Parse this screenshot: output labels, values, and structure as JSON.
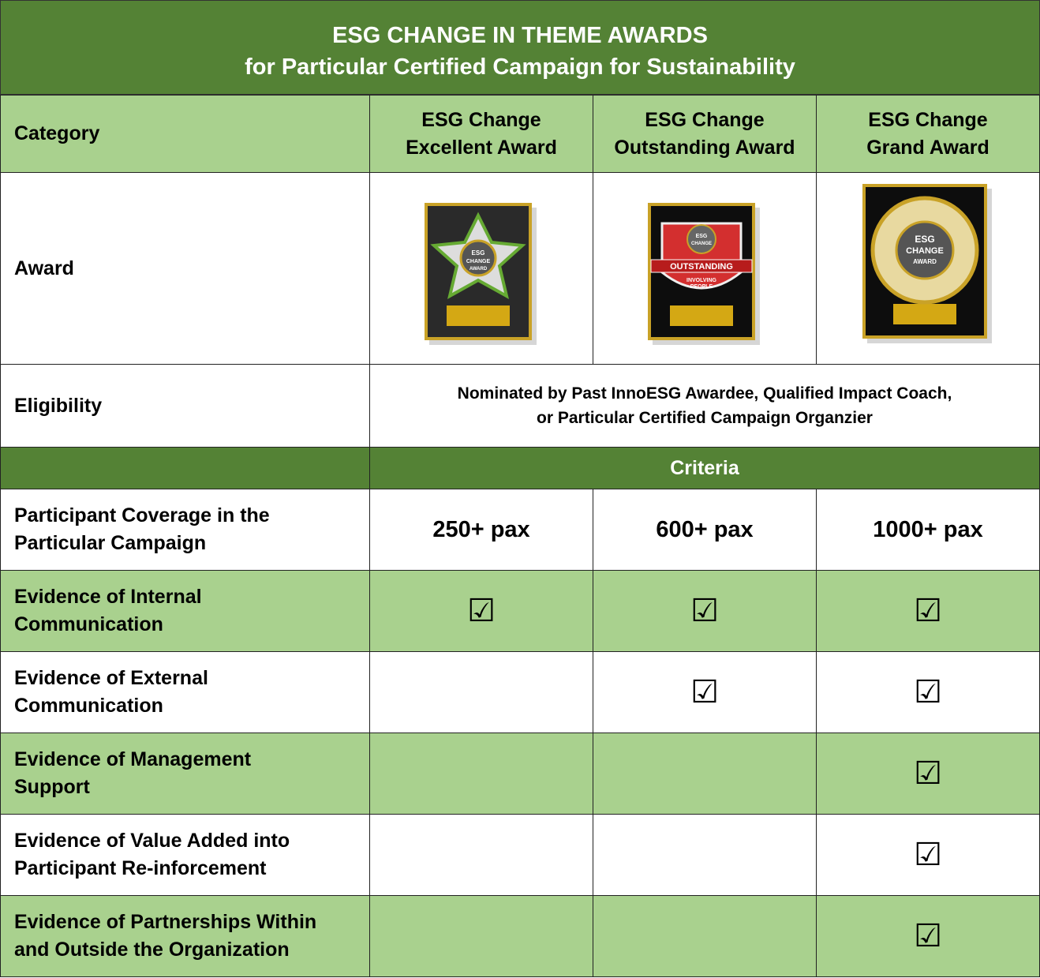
{
  "header": {
    "title": "ESG CHANGE IN THEME AWARDS",
    "subtitle": "for Particular Certified Campaign for Sustainability"
  },
  "table": {
    "columns": [
      [
        "Category"
      ],
      [
        "ESG Change",
        "Excellent Award"
      ],
      [
        "ESG Change",
        "Outstanding Award"
      ],
      [
        "ESG Change",
        "Grand Award"
      ]
    ],
    "award_label": "Award",
    "award_images": [
      {
        "texts": [
          "ESG",
          "CHANGE",
          "AWARD"
        ]
      },
      {
        "texts": [
          "ESG",
          "CHANGE",
          "OUTSTANDING",
          "INVOLVING",
          "PEOPLE"
        ]
      },
      {
        "texts": [
          "ESG",
          "CHANGE",
          "AWARD"
        ]
      }
    ],
    "eligibility_label": "Eligibility",
    "eligibility": [
      "Nominated by Past InnoESG Awardee, Qualified Impact Coach,",
      "or Particular Certified Campaign Organzier"
    ],
    "criteria_label": "Criteria",
    "rows": [
      {
        "label": [
          "Participant Coverage in the",
          "Particular Campaign"
        ],
        "cells": [
          "250+ pax",
          "600+ pax",
          "1000+ pax"
        ]
      },
      {
        "label": [
          "Evidence of Internal",
          "Communication"
        ],
        "cells": [
          "☑",
          "☑",
          "☑"
        ]
      },
      {
        "label": [
          "Evidence of External",
          "Communication"
        ],
        "cells": [
          null,
          "☑",
          "☑"
        ]
      },
      {
        "label": [
          "Evidence of Management",
          "Support"
        ],
        "cells": [
          null,
          null,
          "☑"
        ]
      },
      {
        "label": [
          "Evidence of Value Added into",
          "Participant Re-inforcement"
        ],
        "cells": [
          null,
          null,
          "☑"
        ]
      },
      {
        "label": [
          "Evidence of Partnerships Within",
          "and Outside the Organization"
        ],
        "cells": [
          null,
          null,
          "☑"
        ]
      }
    ]
  }
}
